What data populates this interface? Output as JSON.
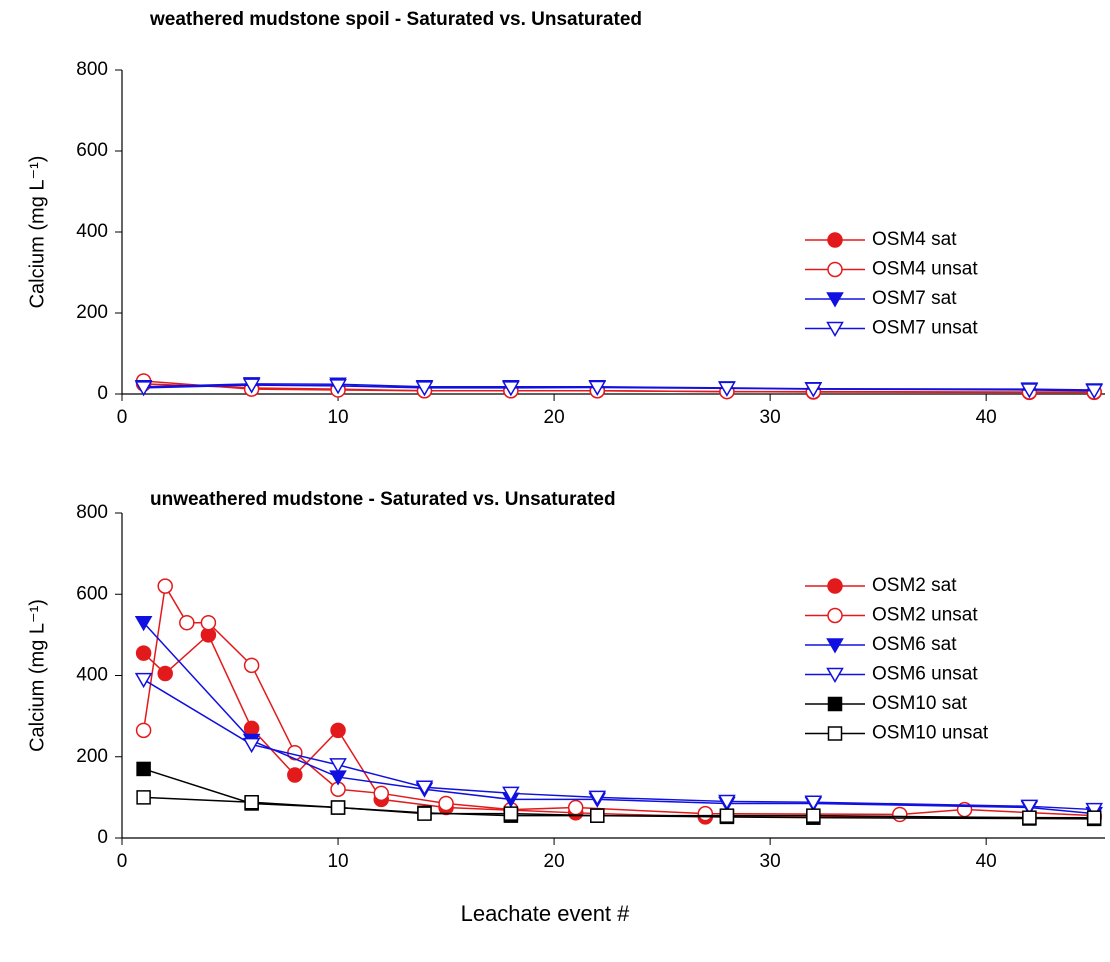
{
  "chart_data": [
    {
      "type": "line",
      "title": "weathered mudstone spoil  -  Saturated vs. Unsaturated",
      "ylabel": "Calcium (mg L⁻¹)",
      "xlim": [
        0,
        45.5
      ],
      "xticks": [
        0,
        10,
        20,
        30,
        40
      ],
      "ylim": [
        0,
        800
      ],
      "yticks": [
        0,
        200,
        400,
        600,
        800
      ],
      "legend": "right",
      "series": [
        {
          "name": "OSM4 sat",
          "color": "#e31a1c",
          "marker": "circle",
          "filled": true,
          "x": [
            1,
            6,
            10,
            14,
            18,
            22,
            28,
            32,
            42,
            45
          ],
          "values": [
            25,
            15,
            12,
            8,
            8,
            8,
            6,
            5,
            4,
            4
          ]
        },
        {
          "name": "OSM4 unsat",
          "color": "#e31a1c",
          "marker": "circle",
          "filled": false,
          "x": [
            1,
            6,
            10,
            14,
            18,
            22,
            28,
            32,
            42,
            45
          ],
          "values": [
            32,
            12,
            10,
            8,
            8,
            8,
            6,
            6,
            5,
            5
          ]
        },
        {
          "name": "OSM7 sat",
          "color": "#1010e0",
          "marker": "triangle-down",
          "filled": true,
          "x": [
            1,
            6,
            10,
            14,
            18,
            22,
            28,
            32,
            42,
            45
          ],
          "values": [
            18,
            25,
            24,
            18,
            18,
            18,
            15,
            13,
            12,
            10
          ]
        },
        {
          "name": "OSM7 unsat",
          "color": "#1010e0",
          "marker": "triangle-down",
          "filled": false,
          "x": [
            1,
            6,
            10,
            14,
            18,
            22,
            28,
            32,
            42,
            45
          ],
          "values": [
            15,
            22,
            20,
            15,
            15,
            16,
            14,
            12,
            10,
            8
          ]
        }
      ]
    },
    {
      "type": "line",
      "title": "unweathered mudstone  -  Saturated vs. Unsaturated",
      "ylabel": "Calcium (mg L⁻¹)",
      "xlabel": "Leachate event #",
      "xlim": [
        0,
        45.5
      ],
      "xticks": [
        0,
        10,
        20,
        30,
        40
      ],
      "ylim": [
        0,
        800
      ],
      "yticks": [
        0,
        200,
        400,
        600,
        800
      ],
      "legend": "right",
      "series": [
        {
          "name": "OSM2 sat",
          "color": "#e31a1c",
          "marker": "circle",
          "filled": true,
          "x": [
            1,
            2,
            4,
            6,
            8,
            10,
            12,
            15,
            21,
            27,
            45
          ],
          "values": [
            455,
            405,
            500,
            270,
            155,
            265,
            95,
            75,
            62,
            52,
            50
          ]
        },
        {
          "name": "OSM2 unsat",
          "color": "#e31a1c",
          "marker": "circle",
          "filled": false,
          "x": [
            1,
            2,
            3,
            4,
            6,
            8,
            10,
            12,
            15,
            18,
            21,
            27,
            36,
            39,
            45
          ],
          "values": [
            265,
            620,
            530,
            530,
            425,
            210,
            120,
            110,
            85,
            70,
            75,
            60,
            58,
            70,
            55
          ]
        },
        {
          "name": "OSM6 sat",
          "color": "#1010e0",
          "marker": "triangle-down",
          "filled": true,
          "x": [
            1,
            6,
            10,
            14,
            18,
            22,
            28,
            32,
            42,
            45
          ],
          "values": [
            530,
            240,
            150,
            120,
            95,
            95,
            85,
            85,
            75,
            60
          ]
        },
        {
          "name": "OSM6 unsat",
          "color": "#1010e0",
          "marker": "triangle-down",
          "filled": false,
          "x": [
            1,
            6,
            10,
            14,
            18,
            22,
            28,
            32,
            42,
            45
          ],
          "values": [
            390,
            230,
            180,
            125,
            110,
            100,
            90,
            88,
            78,
            70
          ]
        },
        {
          "name": "OSM10 sat",
          "color": "#000000",
          "marker": "square",
          "filled": true,
          "x": [
            1,
            6,
            10,
            14,
            18,
            22,
            28,
            32,
            42,
            45
          ],
          "values": [
            170,
            85,
            75,
            62,
            55,
            55,
            52,
            50,
            48,
            47
          ]
        },
        {
          "name": "OSM10 unsat",
          "color": "#000000",
          "marker": "square",
          "filled": false,
          "x": [
            1,
            6,
            10,
            14,
            18,
            22,
            28,
            32,
            42,
            45
          ],
          "values": [
            100,
            88,
            75,
            60,
            60,
            55,
            55,
            55,
            50,
            50
          ]
        }
      ]
    }
  ]
}
